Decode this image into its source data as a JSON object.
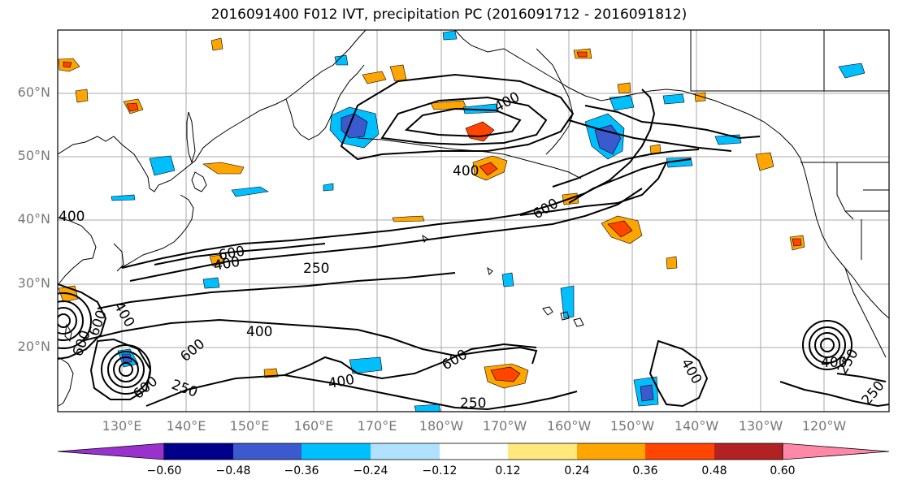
{
  "title": "2016091400 F012 IVT, precipitation PC (2016091712 - 2016091812)",
  "lat_labels": [
    "60°N",
    "50°N",
    "40°N",
    "30°N",
    "20°N"
  ],
  "lon_labels": [
    "130°E",
    "140°E",
    "150°E",
    "160°E",
    "170°E",
    "180°W",
    "170°W",
    "160°W",
    "150°W",
    "140°W",
    "130°W",
    "120°W"
  ],
  "contour_labels": [
    "400",
    "400",
    "600",
    "600",
    "400",
    "250",
    "400",
    "600",
    "600",
    "600",
    "600",
    "250",
    "400",
    "600",
    "250",
    "400",
    "400",
    "250",
    "250",
    "400",
    "400"
  ],
  "colorbar": {
    "tick_labels": [
      "−0.60",
      "−0.48",
      "−0.36",
      "−0.24",
      "−0.12",
      "0.12",
      "0.24",
      "0.36",
      "0.48",
      "0.60"
    ],
    "colors": [
      "#9932cc",
      "#00008b",
      "#3a5acd",
      "#00bfff",
      "#b0e2ff",
      "#ffffff",
      "#ffe87c",
      "#ffa500",
      "#ff4500",
      "#b22222",
      "#ff88a8"
    ]
  },
  "colors": {
    "grid": "#aaaaaa",
    "coast": "#000000",
    "contour": "#000000",
    "axis_label": "#777777"
  }
}
